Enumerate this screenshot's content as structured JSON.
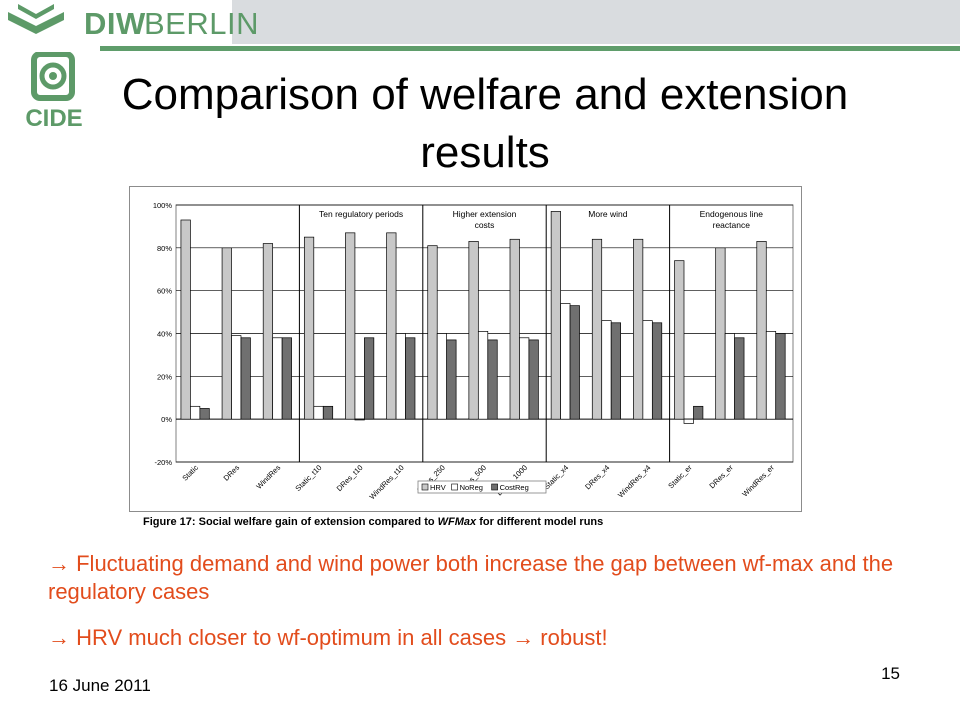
{
  "header": {
    "logo_primary": "DIW",
    "logo_secondary": "BERLIN",
    "sub_logo": "CIDE",
    "colors": {
      "brand_green": "#5d9a68",
      "bar_gray": "#d9dcdf"
    }
  },
  "slide": {
    "title": "Comparison of welfare and extension results",
    "caption_prefix": "Figure 17: Social welfare gain of extension compared to ",
    "caption_emph": "WFMax",
    "caption_suffix": " for different model runs",
    "bullet1": "→ Fluctuating demand and wind power both increase the gap between wf-max and the regulatory cases",
    "bullet2_a": "→ HRV much closer to wf-optimum in all cases ",
    "bullet2_b": "→ robust!",
    "bullet_color": "#e24c1c",
    "date": "16 June 2011",
    "page_number": "15"
  },
  "chart_data": {
    "type": "bar",
    "categories": [
      "Static",
      "DRes",
      "WindRes",
      "Static_t10",
      "DRes_t10",
      "WindRes_t10",
      "DRes_250",
      "DRes_500",
      "DRes_1000",
      "Static_x4",
      "DRes_x4",
      "WindRes_x4",
      "Static_er",
      "DRes_er",
      "WindRes_er"
    ],
    "series": [
      {
        "name": "HRV",
        "color": "#c8c8c8",
        "values": [
          93,
          80,
          82,
          85,
          87,
          87,
          81,
          83,
          84,
          97,
          84,
          84,
          74,
          80,
          83
        ]
      },
      {
        "name": "NoReg",
        "color": "#ffffff",
        "values": [
          6,
          39,
          38,
          6,
          0,
          40,
          40,
          41,
          38,
          54,
          46,
          46,
          -2,
          40,
          41
        ]
      },
      {
        "name": "CostReg",
        "color": "#707070",
        "values": [
          5,
          38,
          38,
          6,
          38,
          38,
          37,
          37,
          37,
          53,
          45,
          45,
          6,
          38,
          40
        ]
      }
    ],
    "yticks": [
      "100%",
      "80%",
      "60%",
      "40%",
      "20%",
      "0%",
      "-20%"
    ],
    "ylim": [
      -20,
      100
    ],
    "grid": true,
    "legend_position": "bottom",
    "groups": [
      {
        "label": "Ten regulatory periods",
        "start": 3,
        "end": 5
      },
      {
        "label": "Higher extension costs",
        "start": 6,
        "end": 8
      },
      {
        "label": "More wind",
        "start": 9,
        "end": 11
      },
      {
        "label": "Endogenous line reactance",
        "start": 12,
        "end": 14
      }
    ]
  }
}
